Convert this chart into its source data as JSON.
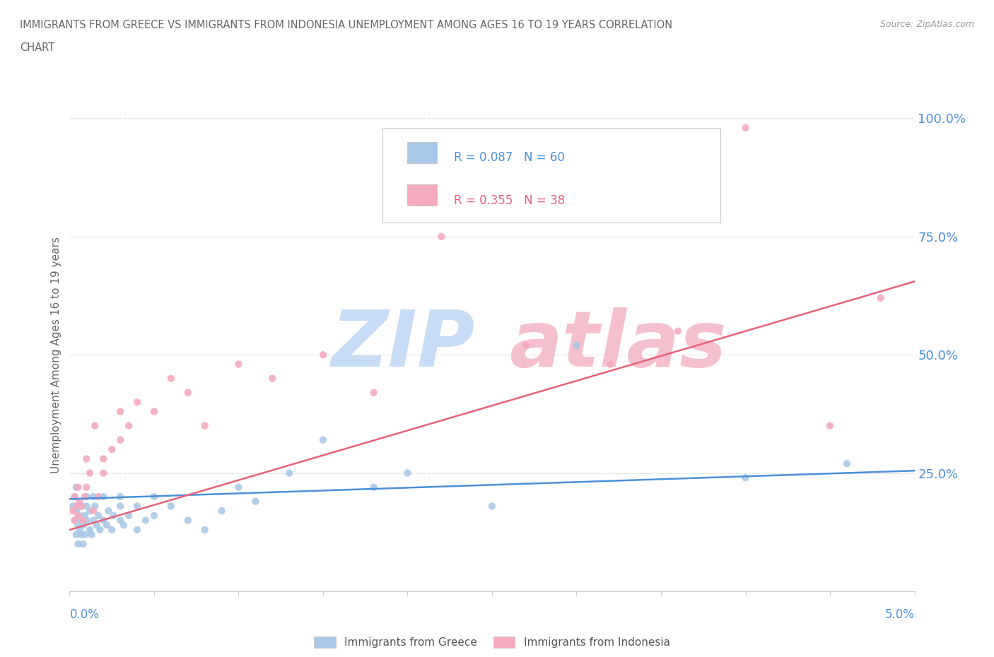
{
  "title_line1": "IMMIGRANTS FROM GREECE VS IMMIGRANTS FROM INDONESIA UNEMPLOYMENT AMONG AGES 16 TO 19 YEARS CORRELATION",
  "title_line2": "CHART",
  "source": "Source: ZipAtlas.com",
  "ylabel": "Unemployment Among Ages 16 to 19 years",
  "greece_color": "#aac9e8",
  "indonesia_color": "#f5aabf",
  "greece_line_color": "#4a90d9",
  "indonesia_line_color": "#e8607a",
  "greece_R": 0.087,
  "greece_N": 60,
  "indonesia_R": 0.355,
  "indonesia_N": 38,
  "xlim": [
    0.0,
    0.05
  ],
  "ylim": [
    0.0,
    1.0
  ],
  "yticks": [
    0.25,
    0.5,
    0.75,
    1.0
  ],
  "ytick_labels": [
    "25.0%",
    "50.0%",
    "75.0%",
    "100.0%"
  ],
  "background_color": "#ffffff",
  "grid_color": "#dddddd",
  "title_color": "#666666",
  "axis_label_color": "#4a90d9",
  "watermark_zip_color": "#c8ddf5",
  "watermark_atlas_color": "#f5c0ce",
  "greece_x": [
    0.0002,
    0.0003,
    0.0003,
    0.0004,
    0.0004,
    0.0004,
    0.0005,
    0.0005,
    0.0005,
    0.0006,
    0.0006,
    0.0007,
    0.0007,
    0.0007,
    0.0008,
    0.0008,
    0.0009,
    0.0009,
    0.001,
    0.001,
    0.001,
    0.0012,
    0.0012,
    0.0013,
    0.0014,
    0.0014,
    0.0015,
    0.0016,
    0.0017,
    0.0018,
    0.002,
    0.002,
    0.0022,
    0.0023,
    0.0025,
    0.0026,
    0.003,
    0.003,
    0.003,
    0.0032,
    0.0035,
    0.004,
    0.004,
    0.0045,
    0.005,
    0.005,
    0.006,
    0.007,
    0.008,
    0.009,
    0.01,
    0.011,
    0.013,
    0.015,
    0.018,
    0.02,
    0.025,
    0.03,
    0.04,
    0.046
  ],
  "greece_y": [
    0.18,
    0.15,
    0.2,
    0.12,
    0.17,
    0.22,
    0.1,
    0.14,
    0.18,
    0.13,
    0.16,
    0.12,
    0.15,
    0.18,
    0.1,
    0.14,
    0.12,
    0.16,
    0.15,
    0.18,
    0.2,
    0.13,
    0.17,
    0.12,
    0.15,
    0.2,
    0.18,
    0.14,
    0.16,
    0.13,
    0.15,
    0.2,
    0.14,
    0.17,
    0.13,
    0.16,
    0.18,
    0.15,
    0.2,
    0.14,
    0.16,
    0.13,
    0.18,
    0.15,
    0.16,
    0.2,
    0.18,
    0.15,
    0.13,
    0.17,
    0.22,
    0.19,
    0.25,
    0.32,
    0.22,
    0.25,
    0.18,
    0.52,
    0.24,
    0.27
  ],
  "indonesia_x": [
    0.0002,
    0.0003,
    0.0003,
    0.0004,
    0.0005,
    0.0005,
    0.0006,
    0.0007,
    0.0008,
    0.0009,
    0.001,
    0.001,
    0.0012,
    0.0014,
    0.0015,
    0.0017,
    0.002,
    0.002,
    0.0025,
    0.003,
    0.003,
    0.0035,
    0.004,
    0.005,
    0.006,
    0.007,
    0.008,
    0.01,
    0.012,
    0.015,
    0.018,
    0.022,
    0.027,
    0.032,
    0.036,
    0.04,
    0.045,
    0.048
  ],
  "indonesia_y": [
    0.17,
    0.15,
    0.2,
    0.18,
    0.22,
    0.16,
    0.19,
    0.18,
    0.15,
    0.2,
    0.22,
    0.28,
    0.25,
    0.17,
    0.35,
    0.2,
    0.25,
    0.28,
    0.3,
    0.32,
    0.38,
    0.35,
    0.4,
    0.38,
    0.45,
    0.42,
    0.35,
    0.48,
    0.45,
    0.5,
    0.42,
    0.75,
    0.52,
    0.48,
    0.55,
    0.98,
    0.35,
    0.62
  ]
}
